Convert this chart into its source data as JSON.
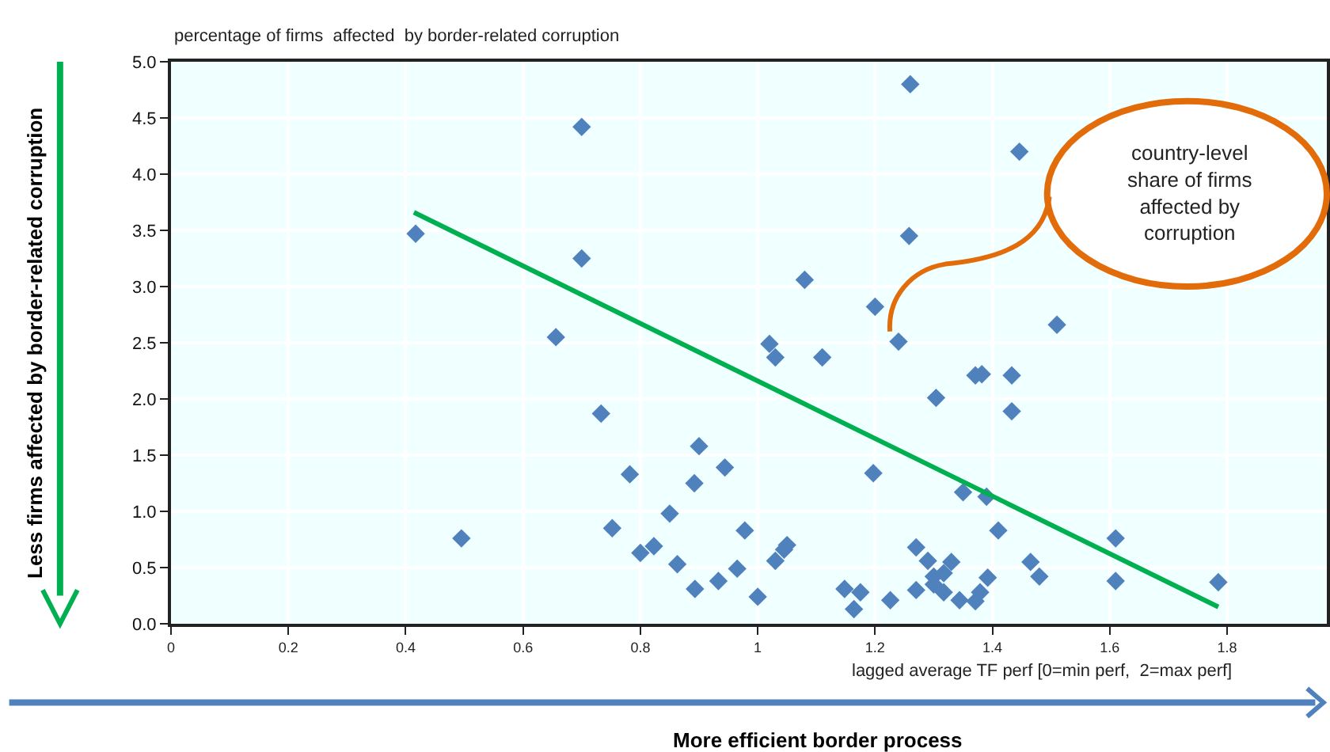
{
  "chart_data": {
    "type": "scatter",
    "ylabel": "percentage of firms  affected  by border-related corruption",
    "xlabel": "lagged average TF perf [0=min perf,  2=max perf]",
    "xlim": [
      0,
      1.97
    ],
    "xticks": [
      0,
      0.2,
      0.4,
      0.6,
      0.8,
      1,
      1.2,
      1.4,
      1.6,
      1.8
    ],
    "ylim": [
      0,
      5
    ],
    "yticks": [
      {
        "value": 0,
        "label": "0.0"
      },
      {
        "value": 0.5,
        "label": "0.5"
      },
      {
        "value": 1,
        "label": "1.0"
      },
      {
        "value": 1.5,
        "label": "1.5"
      },
      {
        "value": 2,
        "label": "2.0"
      },
      {
        "value": 2.5,
        "label": "2.5"
      },
      {
        "value": 3,
        "label": "3.0"
      },
      {
        "value": 3.5,
        "label": "3.5"
      },
      {
        "value": 4,
        "label": "4.0"
      },
      {
        "value": 4.5,
        "label": "4.5"
      },
      {
        "value": 5,
        "label": "5.0"
      }
    ],
    "grid": true,
    "legend": false,
    "marker": "diamond",
    "series": [
      {
        "color": "#4f81bd",
        "x": [
          0.417,
          0.495,
          0.656,
          0.7,
          0.7,
          0.733,
          0.752,
          0.782,
          0.8,
          0.823,
          0.85,
          0.863,
          0.892,
          0.9,
          0.893,
          0.933,
          0.944,
          0.965,
          0.978,
          1.0,
          1.02,
          1.03,
          1.03,
          1.045,
          1.05,
          1.08,
          1.11,
          1.148,
          1.164,
          1.175,
          1.197,
          1.2,
          1.226,
          1.24,
          1.258,
          1.26,
          1.27,
          1.27,
          1.29,
          1.3,
          1.3,
          1.304,
          1.317,
          1.317,
          1.33,
          1.344,
          1.35,
          1.371,
          1.371,
          1.379,
          1.382,
          1.39,
          1.392,
          1.41,
          1.433,
          1.433,
          1.446,
          1.465,
          1.48,
          1.51,
          1.61,
          1.61,
          1.785
        ],
        "values": [
          3.47,
          0.76,
          2.55,
          4.42,
          3.25,
          1.87,
          0.85,
          1.33,
          0.63,
          0.69,
          0.98,
          0.53,
          1.25,
          1.58,
          0.31,
          0.38,
          1.39,
          0.49,
          0.83,
          0.24,
          2.49,
          2.37,
          0.56,
          0.66,
          0.7,
          3.06,
          2.37,
          0.31,
          0.13,
          0.28,
          1.34,
          2.82,
          0.21,
          2.51,
          3.45,
          4.8,
          0.68,
          0.3,
          0.56,
          0.42,
          0.35,
          2.01,
          0.45,
          0.28,
          0.55,
          0.21,
          1.17,
          2.21,
          0.2,
          0.28,
          2.22,
          1.13,
          0.41,
          0.83,
          2.21,
          1.89,
          4.2,
          0.55,
          0.42,
          2.66,
          0.76,
          0.38,
          0.37
        ]
      },
      {
        "type": "line",
        "color": "#00b050",
        "line_style": "solid",
        "marker": "none",
        "x": [
          0.414,
          1.785
        ],
        "values": [
          3.66,
          0.15
        ]
      }
    ],
    "annotations": [
      "Less firms affected by border-related corruption",
      "More efficient border process",
      "country-level\nshare of firms\naffected by\ncorruption"
    ]
  }
}
